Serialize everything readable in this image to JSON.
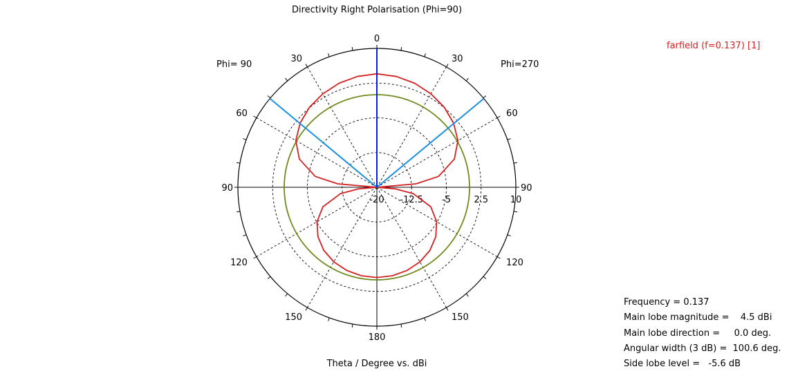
{
  "chart_data": {
    "type": "polar",
    "title": "Directivity Right Polarisation (Phi=90)",
    "xlabel": "Theta / Degree vs. dBi",
    "side_labels": {
      "left": "Phi= 90",
      "right": "Phi=270"
    },
    "angle_ticks": [
      {
        "angle": 0,
        "label": "0"
      },
      {
        "angle": 30,
        "label": "30"
      },
      {
        "angle": 60,
        "label": "60"
      },
      {
        "angle": 90,
        "label": "90"
      },
      {
        "angle": 120,
        "label": "120"
      },
      {
        "angle": 150,
        "label": "150"
      },
      {
        "angle": 180,
        "label": "180"
      },
      {
        "angle": -30,
        "label": "30"
      },
      {
        "angle": -60,
        "label": "60"
      },
      {
        "angle": -90,
        "label": "90"
      },
      {
        "angle": -120,
        "label": "120"
      },
      {
        "angle": -150,
        "label": "150"
      }
    ],
    "radial_axis": {
      "min": -20,
      "max": 10,
      "tick_values": [
        -20,
        -12.5,
        -5,
        2.5,
        10
      ],
      "tick_labels": [
        "-20",
        "-12.5",
        "-5",
        "2.5",
        "10"
      ],
      "grid_values": [
        -12.5,
        -5,
        2.5
      ]
    },
    "reference_circle_dbi": 0,
    "beamwidth_lines_deg": [
      -50.3,
      50.3
    ],
    "main_lobe_direction_deg": 0,
    "series": [
      {
        "name": "farfield (f=0.137) [1]",
        "color": "#d42020",
        "angles_deg": [
          -180,
          -170,
          -160,
          -150,
          -140,
          -130,
          -120,
          -110,
          -100,
          -95,
          -90,
          -85,
          -80,
          -70,
          -60,
          -50,
          -40,
          -30,
          -20,
          -10,
          0,
          10,
          20,
          30,
          40,
          50,
          60,
          70,
          80,
          85,
          90,
          95,
          100,
          110,
          120,
          130,
          140,
          150,
          160,
          170,
          180
        ],
        "values_dbi": [
          -0.5,
          -0.6,
          -0.9,
          -1.4,
          -2.2,
          -3.4,
          -5.1,
          -7.6,
          -12,
          -16,
          -20,
          -11.5,
          -6.5,
          -2.2,
          0.2,
          1.6,
          2.6,
          3.3,
          3.9,
          4.3,
          4.5,
          4.3,
          3.9,
          3.3,
          2.6,
          1.6,
          0.2,
          -2.2,
          -6.5,
          -11.5,
          -20,
          -16,
          -12,
          -7.6,
          -5.1,
          -3.4,
          -2.2,
          -1.4,
          -0.9,
          -0.6,
          -0.5
        ]
      }
    ]
  },
  "legend": {
    "text": "farfield (f=0.137) [1]"
  },
  "info": [
    {
      "key": "Frequency = ",
      "value": "0.137"
    },
    {
      "key": "Main lobe magnitude =",
      "value": "   4.5 dBi"
    },
    {
      "key": "Main lobe direction =",
      "value": "    0.0 deg."
    },
    {
      "key": "Angular width (3 dB) =",
      "value": " 100.6 deg."
    },
    {
      "key": "Side lobe level =",
      "value": "  -5.6 dB"
    }
  ],
  "colors": {
    "pattern": "#d42020",
    "reference": "#6e8a1c",
    "main_lobe": "#0a1ed6",
    "beamwidth": "#1a8ee0"
  }
}
